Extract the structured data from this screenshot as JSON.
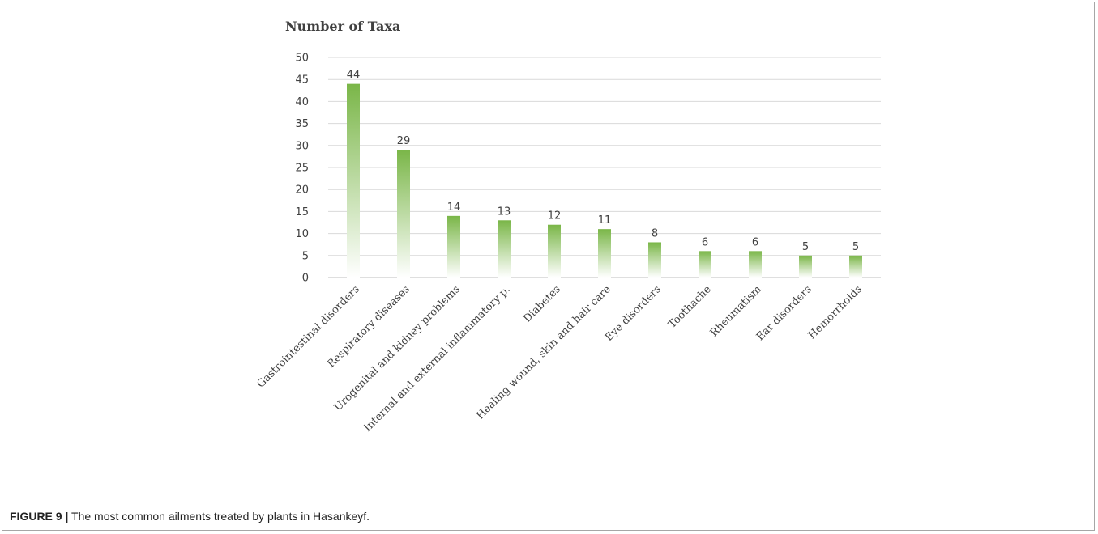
{
  "caption": {
    "label": "FIGURE 9 |",
    "text": " The most common ailments treated by plants in Hasankeyf."
  },
  "colors": {
    "bar_top": "#7ab648",
    "bar_bottom": "#ffffff",
    "grid": "#d9d9d9",
    "axis": "#bfbfbf"
  },
  "chart_data": {
    "type": "bar",
    "title": "Number of Taxa",
    "xlabel": "",
    "ylabel": "",
    "ylim": [
      0,
      50
    ],
    "yticks": [
      0,
      5,
      10,
      15,
      20,
      25,
      30,
      35,
      40,
      45,
      50
    ],
    "grid": true,
    "categories": [
      "Gastrointestinal disorders",
      "Respiratory diseases",
      "Urogenital and  kidney problems",
      "Internal and external inflammatory p.",
      "Diabetes",
      "Healing wound, skin and hair care",
      "Eye disorders",
      "Toothache",
      "Rheumatism",
      "Ear disorders",
      "Hemorrhoids"
    ],
    "values": [
      44,
      29,
      14,
      13,
      12,
      11,
      8,
      6,
      6,
      5,
      5
    ]
  }
}
